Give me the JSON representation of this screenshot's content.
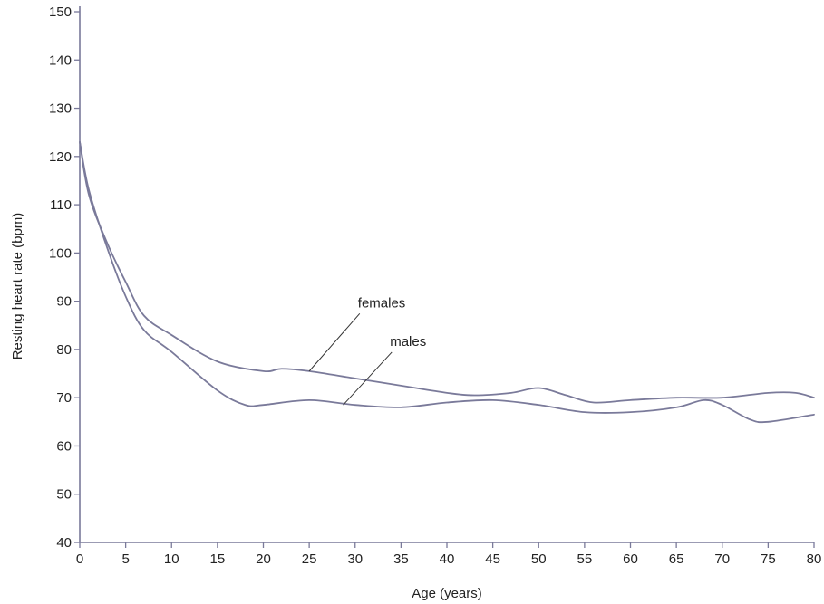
{
  "chart_data": {
    "type": "line",
    "title": "",
    "xlabel": "Age (years)",
    "ylabel": "Resting heart rate (bpm)",
    "xlim": [
      0,
      80
    ],
    "ylim": [
      40,
      150
    ],
    "xticks": [
      0,
      5,
      10,
      15,
      20,
      25,
      30,
      35,
      40,
      45,
      50,
      55,
      60,
      65,
      70,
      75,
      80
    ],
    "yticks": [
      40,
      50,
      60,
      70,
      80,
      90,
      100,
      110,
      120,
      130,
      140,
      150
    ],
    "grid": false,
    "legend": "none",
    "line_color": "#7a7a9a",
    "series": [
      {
        "name": "females",
        "x": [
          0,
          1,
          3,
          5,
          7,
          10,
          15,
          20,
          22,
          25,
          30,
          35,
          40,
          43,
          47,
          50,
          53,
          56,
          60,
          65,
          70,
          75,
          78,
          80
        ],
        "y": [
          123,
          112,
          102,
          94,
          87,
          83,
          77.5,
          75.5,
          76,
          75.5,
          74,
          72.5,
          71,
          70.5,
          71,
          72,
          70.5,
          69,
          69.5,
          70,
          70,
          71,
          71,
          70
        ]
      },
      {
        "name": "males",
        "x": [
          0,
          1,
          3,
          5,
          7,
          10,
          15,
          18,
          20,
          25,
          30,
          35,
          40,
          45,
          50,
          55,
          60,
          65,
          68,
          70,
          73,
          75,
          80
        ],
        "y": [
          123,
          113,
          101,
          91,
          84,
          79.5,
          71.5,
          68.5,
          68.5,
          69.5,
          68.5,
          68,
          69,
          69.5,
          68.5,
          67,
          67,
          68,
          69.5,
          68.5,
          65.5,
          65,
          66.5
        ]
      }
    ],
    "annotations": [
      {
        "text": "females",
        "series": "females",
        "x": 25,
        "y": 75.5,
        "text_x": 30.3,
        "text_y": 88
      },
      {
        "text": "males",
        "series": "males",
        "x": 28.7,
        "y": 68.5,
        "text_x": 33.8,
        "text_y": 80
      }
    ]
  }
}
